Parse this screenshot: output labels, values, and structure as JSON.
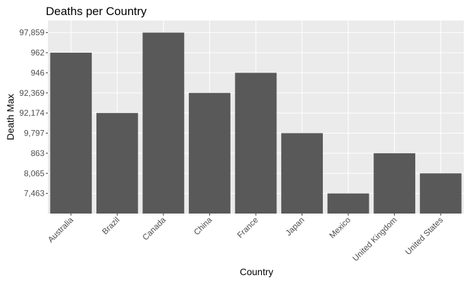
{
  "chart_data": {
    "type": "bar",
    "title": "Deaths per Country",
    "x_label": "Country",
    "y_label": "Death Max",
    "categories": [
      "Australia",
      "Brazil",
      "Canada",
      "China",
      "France",
      "Japan",
      "Mexico",
      "United Kingdom",
      "United States"
    ],
    "values": [
      8,
      5,
      9,
      6,
      7,
      4,
      1,
      3,
      2
    ],
    "color": "#595959",
    "ylim": [
      0,
      9.6
    ],
    "yticks": [
      {
        "value": 1,
        "label": "7,463"
      },
      {
        "value": 2,
        "label": "8,065"
      },
      {
        "value": 3,
        "label": "863"
      },
      {
        "value": 4,
        "label": "9,797"
      },
      {
        "value": 5,
        "label": "92,174"
      },
      {
        "value": 6,
        "label": "92,369"
      },
      {
        "value": 7,
        "label": "946"
      },
      {
        "value": 8,
        "label": "962"
      },
      {
        "value": 9,
        "label": "97,859"
      }
    ],
    "grid": true
  }
}
